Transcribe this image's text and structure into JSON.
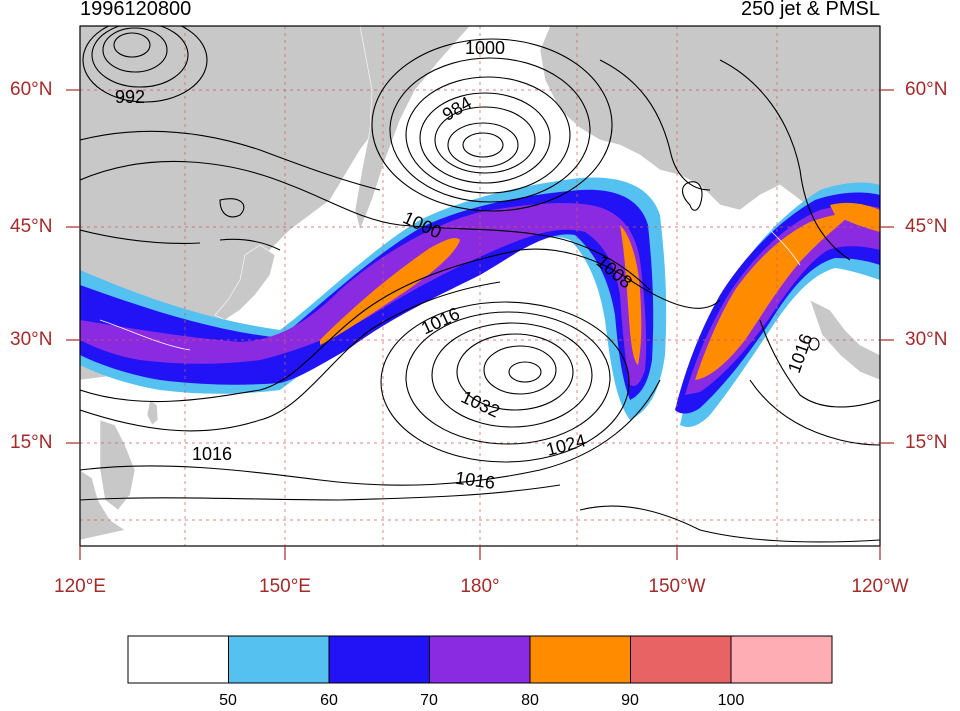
{
  "titles": {
    "left": "1996120800",
    "right": "250 jet & PMSL"
  },
  "lat_labels": [
    "60°N",
    "45°N",
    "30°N",
    "15°N"
  ],
  "lon_labels": [
    "120°E",
    "150°E",
    "180°",
    "150°W",
    "120°W"
  ],
  "isobar_labels": [
    "1000",
    "992",
    "984",
    "1000",
    "1008",
    "1016",
    "1032",
    "1024",
    "1016",
    "1016",
    "1016"
  ],
  "colorbar": {
    "labels": [
      "50",
      "60",
      "70",
      "80",
      "90",
      "100"
    ],
    "colors": [
      "#ffffff",
      "#55c1f0",
      "#2213f7",
      "#8a2be2",
      "#ff8b00",
      "#e86464",
      "#ffadb4"
    ]
  },
  "colors": {
    "land": "#c8c8c8",
    "axis_text": "#a52a2a",
    "grid": "#d25a5a",
    "jet_50": "#55c1f0",
    "jet_60": "#2213f7",
    "jet_70": "#8a2be2",
    "jet_80": "#ff8b00"
  }
}
